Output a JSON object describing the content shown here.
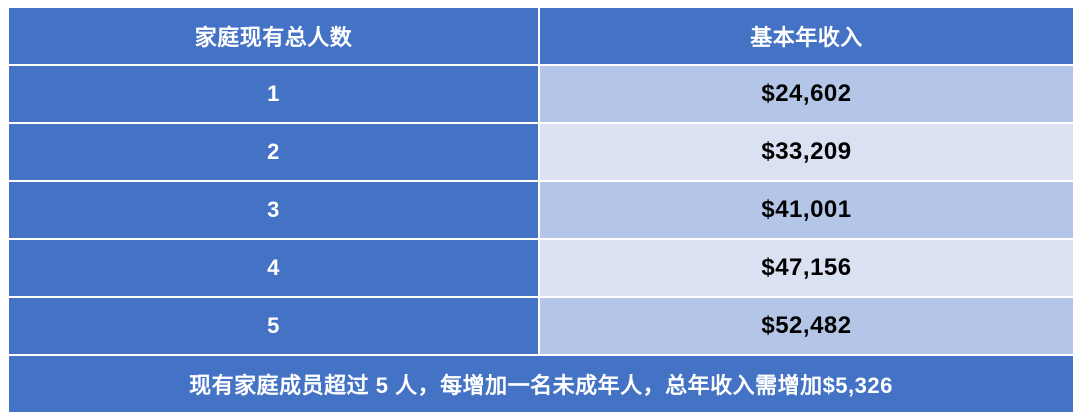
{
  "table": {
    "headers": [
      "家庭现有总人数",
      "基本年收入"
    ],
    "rows": [
      {
        "members": "1",
        "income": "$24,602"
      },
      {
        "members": "2",
        "income": "$33,209"
      },
      {
        "members": "3",
        "income": "$41,001"
      },
      {
        "members": "4",
        "income": "$47,156"
      },
      {
        "members": "5",
        "income": "$52,482"
      }
    ],
    "footer": "现有家庭成员超过 5 人，每增加一名未成年人，总年收入需增加$5,326"
  },
  "colors": {
    "header_bg": "#4472c4",
    "row_dark_bg": "#b4c6e7",
    "row_light_bg": "#d9e1f2"
  }
}
